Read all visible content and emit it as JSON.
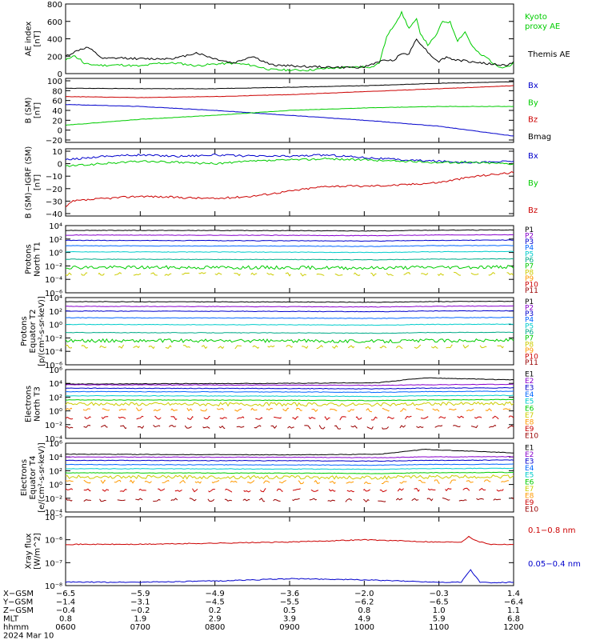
{
  "chart_data": [
    {
      "type": "line",
      "ylabel": "AE index\n[nT]",
      "ylim": [
        0,
        800
      ],
      "yticks": [
        "0",
        "200",
        "400",
        "600",
        "800"
      ],
      "series": [
        {
          "name": "Kyoto\nproxy AE",
          "color": "#00cc00",
          "x": [
            0,
            0.1,
            0.2,
            0.25,
            0.5,
            0.75,
            1,
            1.25,
            1.5,
            1.75,
            2,
            2.25,
            2.5,
            2.75,
            3,
            3.25,
            3.5,
            3.75,
            4,
            4.1,
            4.2,
            4.3,
            4.4,
            4.5,
            4.6,
            4.7,
            4.75,
            4.85,
            4.95,
            5.05,
            5.15,
            5.25,
            5.35,
            5.45,
            5.55,
            5.65,
            5.75,
            5.85,
            5.95,
            6
          ],
          "values": [
            150,
            210,
            160,
            110,
            95,
            100,
            85,
            120,
            120,
            90,
            110,
            120,
            95,
            45,
            40,
            40,
            60,
            70,
            80,
            75,
            120,
            420,
            560,
            700,
            520,
            620,
            470,
            330,
            420,
            600,
            590,
            380,
            480,
            310,
            220,
            180,
            100,
            75,
            90,
            120
          ]
        },
        {
          "name": "Themis AE",
          "color": "#000000",
          "x": [
            0,
            0.1,
            0.2,
            0.3,
            0.5,
            0.75,
            1,
            1.25,
            1.5,
            1.75,
            2,
            2.25,
            2.5,
            2.75,
            3,
            3.25,
            3.5,
            3.75,
            4,
            4.2,
            4.4,
            4.5,
            4.6,
            4.7,
            4.8,
            4.9,
            5,
            5.1,
            5.2,
            5.3,
            5.4,
            5.5,
            5.6,
            5.7,
            5.8,
            5.9,
            6
          ],
          "values": [
            200,
            240,
            280,
            300,
            170,
            180,
            170,
            170,
            180,
            240,
            170,
            120,
            200,
            100,
            90,
            80,
            75,
            70,
            75,
            140,
            160,
            230,
            230,
            400,
            300,
            200,
            140,
            190,
            160,
            150,
            140,
            130,
            120,
            110,
            100,
            95,
            130
          ]
        }
      ]
    },
    {
      "type": "line",
      "ylabel": "B (SM)\n[nT]",
      "ylim": [
        -20,
        100
      ],
      "yticks": [
        "100",
        "80",
        "60",
        "40",
        "20",
        "0",
        "−20"
      ],
      "series": [
        {
          "name": "Bx",
          "color": "#0000cc",
          "x": [
            0,
            1,
            2,
            3,
            4,
            5,
            6
          ],
          "values": [
            52,
            48,
            40,
            30,
            20,
            8,
            -12
          ]
        },
        {
          "name": "By",
          "color": "#00cc00",
          "x": [
            0,
            1,
            2,
            3,
            4,
            5,
            6
          ],
          "values": [
            10,
            22,
            30,
            40,
            45,
            48,
            48
          ]
        },
        {
          "name": "Bz",
          "color": "#cc0000",
          "x": [
            0,
            1,
            2,
            3,
            4,
            5,
            6
          ],
          "values": [
            68,
            66,
            68,
            72,
            78,
            84,
            90
          ]
        },
        {
          "name": "Bmag",
          "color": "#000000",
          "x": [
            0,
            1,
            2,
            3,
            4,
            5,
            6
          ],
          "values": [
            85,
            84,
            84,
            87,
            90,
            95,
            98
          ]
        }
      ]
    },
    {
      "type": "line",
      "ylabel": "B (SM)−IGRF (SM)\n[nT]",
      "ylim": [
        -40,
        10
      ],
      "yticks": [
        "10",
        "0",
        "−10",
        "−20",
        "−30",
        "−40"
      ],
      "series": [
        {
          "name": "Bx",
          "color": "#0000cc",
          "x": [
            0,
            0.5,
            1,
            1.5,
            2,
            2.5,
            3,
            3.5,
            4,
            4.5,
            5,
            5.5,
            6
          ],
          "values": [
            3,
            6,
            7,
            6,
            7,
            6,
            6,
            7,
            5,
            3,
            2,
            1,
            2
          ]
        },
        {
          "name": "By",
          "color": "#00cc00",
          "x": [
            0,
            0.5,
            1,
            1.5,
            2,
            2.5,
            3,
            3.5,
            4,
            4.5,
            5,
            5.5,
            6
          ],
          "values": [
            -2,
            0,
            2,
            1,
            0,
            2,
            3,
            4,
            3,
            2,
            1,
            1,
            0
          ]
        },
        {
          "name": "Bz",
          "color": "#cc0000",
          "x": [
            0,
            0.1,
            0.5,
            1,
            1.5,
            2,
            2.5,
            3,
            3.5,
            4,
            4.5,
            5,
            5.5,
            6
          ],
          "values": [
            -35,
            -30,
            -28,
            -26,
            -27,
            -28,
            -26,
            -22,
            -18,
            -18,
            -17,
            -15,
            -10,
            -7
          ]
        }
      ]
    },
    {
      "type": "line",
      "ylabel": "Protons\nNorth T1",
      "ylim": [
        "1e-6",
        "1e4"
      ],
      "yticks": [
        "10⁴",
        "10²",
        "10⁰",
        "10⁻²",
        "10⁻⁴",
        "10⁻⁶"
      ],
      "channels": [
        "P1",
        "P2",
        "P3",
        "P4",
        "P5",
        "P6",
        "P7",
        "P8",
        "P9",
        "P10",
        "P11"
      ],
      "channel_colors": [
        "#000000",
        "#8800cc",
        "#0000cc",
        "#0066ff",
        "#00cccc",
        "#00aa88",
        "#00cc00",
        "#cccc00",
        "#ff9900",
        "#cc0000",
        "#990000"
      ],
      "log_levels": [
        3.3,
        2.6,
        1.8,
        1.0,
        0.1,
        -1.0,
        -2.2,
        -3.2,
        null,
        null,
        null
      ]
    },
    {
      "type": "line",
      "ylabel": "Protons\nEquator T2\n[p/(cm²-s-sr-keV)]",
      "ylim": [
        "1e-6",
        "1e4"
      ],
      "yticks": [
        "10⁴",
        "10²",
        "10⁰",
        "10⁻²",
        "10⁻⁴",
        "10⁻⁶"
      ],
      "channels": [
        "P1",
        "P2",
        "P3",
        "P4",
        "P5",
        "P6",
        "P7",
        "P8",
        "P9",
        "P10",
        "P11"
      ],
      "channel_colors": [
        "#000000",
        "#8800cc",
        "#0000cc",
        "#0066ff",
        "#00cccc",
        "#00aa88",
        "#00cc00",
        "#cccc00",
        "#ff9900",
        "#cc0000",
        "#990000"
      ],
      "log_levels": [
        3.4,
        2.7,
        2.0,
        1.0,
        0.0,
        -1.2,
        -2.4,
        -3.3,
        null,
        null,
        null
      ]
    },
    {
      "type": "line",
      "ylabel": "Electrons\nNorth T3",
      "ylim": [
        "1e-4",
        "1e6"
      ],
      "yticks": [
        "10⁶",
        "10⁴",
        "10²",
        "10⁰",
        "10⁻²",
        "10⁻⁴"
      ],
      "channels": [
        "E1",
        "E2",
        "E3",
        "E4",
        "E5",
        "E6",
        "E7",
        "E8",
        "E9",
        "E10"
      ],
      "channel_colors": [
        "#000000",
        "#8800cc",
        "#0000cc",
        "#0066ff",
        "#00cccc",
        "#00cc00",
        "#cccc00",
        "#ff9900",
        "#cc0000",
        "#990000"
      ],
      "log_levels": [
        4.3,
        3.8,
        3.3,
        2.8,
        2.2,
        1.6,
        1.0,
        0.2,
        -1.0,
        -2.3
      ]
    },
    {
      "type": "line",
      "ylabel": "Electrons\nEquator T4\n[e/(cm²-s-sr-keV)]",
      "ylim": [
        "1e-4",
        "1e6"
      ],
      "yticks": [
        "10⁶",
        "10⁴",
        "10²",
        "10⁰",
        "10⁻²",
        "10⁻⁴"
      ],
      "channels": [
        "E1",
        "E2",
        "E3",
        "E4",
        "E5",
        "E6",
        "E7",
        "E8",
        "E9",
        "E10"
      ],
      "channel_colors": [
        "#000000",
        "#8800cc",
        "#0000cc",
        "#0066ff",
        "#00cccc",
        "#00cc00",
        "#cccc00",
        "#ff9900",
        "#cc0000",
        "#990000"
      ],
      "log_levels": [
        4.6,
        4.0,
        3.5,
        2.9,
        2.3,
        1.7,
        1.1,
        0.4,
        -0.8,
        -2.2
      ]
    },
    {
      "type": "line",
      "ylabel": "Xray flux\n[W/m^2]",
      "ylim": [
        "1e-8",
        "1e-5"
      ],
      "yticks": [
        "10⁻⁵",
        "10⁻⁶",
        "10⁻⁷",
        "10⁻⁸"
      ],
      "series": [
        {
          "name": "0.1−0.8 nm",
          "color": "#cc0000",
          "x": [
            0,
            1,
            2,
            3,
            3.5,
            4,
            4.5,
            5,
            5.3,
            5.4,
            5.5,
            5.7,
            6
          ],
          "log_values": [
            -6.2,
            -6.2,
            -6.15,
            -6.1,
            -6.05,
            -6.0,
            -6.05,
            -6.1,
            -6.1,
            -5.85,
            -6.05,
            -6.2,
            -6.2
          ]
        },
        {
          "name": "0.05−0.4 nm",
          "color": "#0000cc",
          "x": [
            0,
            1,
            2,
            2.5,
            3,
            3.5,
            4,
            4.5,
            5,
            5.3,
            5.42,
            5.55,
            5.7,
            6
          ],
          "log_values": [
            -7.85,
            -7.85,
            -7.8,
            -7.75,
            -7.7,
            -7.72,
            -7.75,
            -7.8,
            -7.85,
            -7.85,
            -7.3,
            -7.85,
            -7.88,
            -7.85
          ]
        }
      ]
    }
  ],
  "axis_rows": [
    {
      "label": "X−GSM",
      "values": [
        "−6.5",
        "−5.9",
        "−4.9",
        "−3.6",
        "−2.0",
        "−0.3",
        "1.4"
      ]
    },
    {
      "label": "Y−GSM",
      "values": [
        "−1.4",
        "−3.1",
        "−4.5",
        "−5.5",
        "−6.2",
        "−6.5",
        "−6.4"
      ]
    },
    {
      "label": "Z−GSM",
      "values": [
        "−0.4",
        "−0.2",
        "0.2",
        "0.5",
        "0.8",
        "1.0",
        "1.1"
      ]
    },
    {
      "label": "MLT",
      "values": [
        "0.8",
        "1.9",
        "2.9",
        "3.9",
        "4.9",
        "5.9",
        "6.8"
      ]
    },
    {
      "label": "hhmm",
      "values": [
        "0600",
        "0700",
        "0800",
        "0900",
        "1000",
        "1100",
        "1200"
      ]
    }
  ],
  "date_label": "2024 Mar 10"
}
